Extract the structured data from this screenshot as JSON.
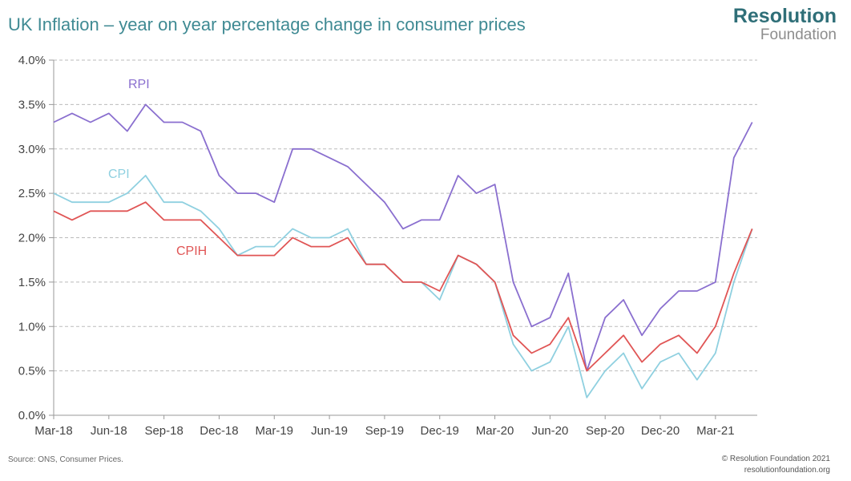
{
  "header": {
    "title": "UK Inflation – year on year percentage change in consumer prices"
  },
  "logo": {
    "line1": "Resolution",
    "line2": "Foundation"
  },
  "footer": {
    "source": "Source: ONS, Consumer Prices.",
    "copyright": "© Resolution Foundation 2021",
    "website": "resolutionfoundation.org"
  },
  "chart_data": {
    "type": "line",
    "title": "UK Inflation – year on year percentage change in consumer prices",
    "xlabel": "",
    "ylabel": "",
    "x": [
      "Mar-18",
      "Apr-18",
      "May-18",
      "Jun-18",
      "Jul-18",
      "Aug-18",
      "Sep-18",
      "Oct-18",
      "Nov-18",
      "Dec-18",
      "Jan-19",
      "Feb-19",
      "Mar-19",
      "Apr-19",
      "May-19",
      "Jun-19",
      "Jul-19",
      "Aug-19",
      "Sep-19",
      "Oct-19",
      "Nov-19",
      "Dec-19",
      "Jan-20",
      "Feb-20",
      "Mar-20",
      "Apr-20",
      "May-20",
      "Jun-20",
      "Jul-20",
      "Aug-20",
      "Sep-20",
      "Oct-20",
      "Nov-20",
      "Dec-20",
      "Jan-21",
      "Feb-21",
      "Mar-21",
      "Apr-21",
      "May-21"
    ],
    "x_tick_labels": [
      "Mar-18",
      "Jun-18",
      "Sep-18",
      "Dec-18",
      "Mar-19",
      "Jun-19",
      "Sep-19",
      "Dec-19",
      "Mar-20",
      "Jun-20",
      "Sep-20",
      "Dec-20",
      "Mar-21"
    ],
    "y_tick_labels": [
      "0.0%",
      "0.5%",
      "1.0%",
      "1.5%",
      "2.0%",
      "2.5%",
      "3.0%",
      "3.5%",
      "4.0%"
    ],
    "ylim": [
      0,
      4
    ],
    "grid": "horizontal dashed",
    "series": [
      {
        "name": "RPI",
        "color": "#8a6fcf",
        "values": [
          3.3,
          3.4,
          3.3,
          3.4,
          3.2,
          3.5,
          3.3,
          3.3,
          3.2,
          2.7,
          2.5,
          2.5,
          2.4,
          3.0,
          3.0,
          2.9,
          2.8,
          2.6,
          2.4,
          2.1,
          2.2,
          2.2,
          2.7,
          2.5,
          2.6,
          1.5,
          1.0,
          1.1,
          1.6,
          0.5,
          1.1,
          1.3,
          0.9,
          1.2,
          1.4,
          1.4,
          1.5,
          2.9,
          3.3
        ]
      },
      {
        "name": "CPI",
        "color": "#8fd0e0",
        "values": [
          2.5,
          2.4,
          2.4,
          2.4,
          2.5,
          2.7,
          2.4,
          2.4,
          2.3,
          2.1,
          1.8,
          1.9,
          1.9,
          2.1,
          2.0,
          2.0,
          2.1,
          1.7,
          1.7,
          1.5,
          1.5,
          1.3,
          1.8,
          1.7,
          1.5,
          0.8,
          0.5,
          0.6,
          1.0,
          0.2,
          0.5,
          0.7,
          0.3,
          0.6,
          0.7,
          0.4,
          0.7,
          1.5,
          2.1
        ]
      },
      {
        "name": "CPIH",
        "color": "#e05555",
        "values": [
          2.3,
          2.2,
          2.3,
          2.3,
          2.3,
          2.4,
          2.2,
          2.2,
          2.2,
          2.0,
          1.8,
          1.8,
          1.8,
          2.0,
          1.9,
          1.9,
          2.0,
          1.7,
          1.7,
          1.5,
          1.5,
          1.4,
          1.8,
          1.7,
          1.5,
          0.9,
          0.7,
          0.8,
          1.1,
          0.5,
          0.7,
          0.9,
          0.6,
          0.8,
          0.9,
          0.7,
          1.0,
          1.6,
          2.1
        ]
      }
    ]
  }
}
